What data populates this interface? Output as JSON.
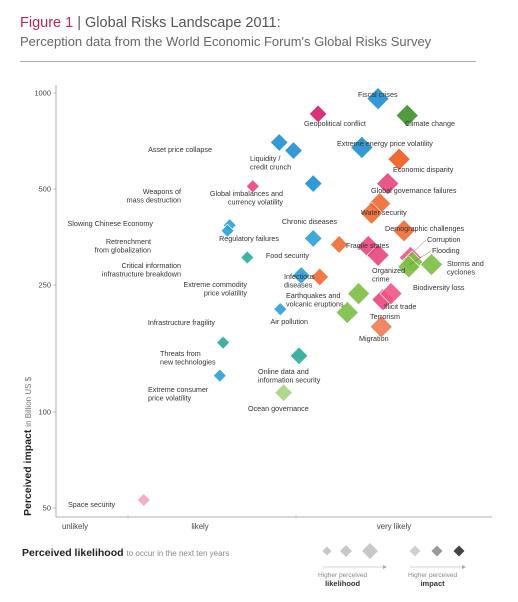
{
  "header": {
    "figure": "Figure 1",
    "title": "Global Risks Landscape 2011:",
    "subtitle": "Perception data from the World Economic Forum's Global Risks Survey"
  },
  "axes": {
    "y_bold": "Perceived impact",
    "y_small": "in Billion US $",
    "x_bold": "Perceived likelihood",
    "x_small": "to occur in the next ten years"
  },
  "legend": {
    "likelihood_top": "Higher perceived",
    "likelihood_bottom": "likelihood",
    "impact_top": "Higher perceived",
    "impact_bottom": "impact"
  },
  "colors": {
    "economic": "#1e8fd0",
    "geopolitical": "#d81b6a",
    "societal": "#ee6a33",
    "environmental": "#55a532",
    "technological": "#2aa99b"
  },
  "chart_data": {
    "type": "scatter",
    "x_scale": "categorical-continuous",
    "y_scale": "log",
    "x_ticks": [
      "unlikely",
      "likely",
      "very likely"
    ],
    "y_ticks": [
      50,
      100,
      250,
      500,
      1000
    ],
    "ylim": [
      50,
      1000
    ],
    "grid": false,
    "points": [
      {
        "label": "Fiscal crises",
        "x": 4.42,
        "y": 960,
        "color": "#1e8fd0",
        "size": 3
      },
      {
        "label": "Climate change",
        "x": 4.6,
        "y": 850,
        "color": "#3f8f2a",
        "size": 3
      },
      {
        "label": "Geopolitical conflict",
        "x": 4.05,
        "y": 860,
        "color": "#d81b6a",
        "size": 2
      },
      {
        "label": "Extreme energy price volatility",
        "x": 4.32,
        "y": 675,
        "color": "#1e8fd0",
        "size": 3
      },
      {
        "label": "Economic disparity",
        "x": 4.55,
        "y": 620,
        "color": "#ee5a1e",
        "size": 3
      },
      {
        "label": "Asset price collapse",
        "x": 3.72,
        "y": 700,
        "color": "#1e8fd0",
        "size": 2
      },
      {
        "label": "Liquidity / credit crunch",
        "x": 3.85,
        "y": 660,
        "color": "#1e8fd0",
        "size": 2
      },
      {
        "label": "Global governance failures",
        "x": 4.48,
        "y": 520,
        "color": "#e8457d",
        "size": 3
      },
      {
        "label": "Global imbalances and currency volatility",
        "x": 4.02,
        "y": 520,
        "color": "#1e8fd0",
        "size": 2
      },
      {
        "label": "Weapons of mass destruction",
        "x": 3.48,
        "y": 510,
        "color": "#e8457d",
        "size": 1
      },
      {
        "label": "Water security",
        "x": 4.43,
        "y": 450,
        "color": "#ee6a33",
        "size": 3
      },
      {
        "label": "Chronic diseases",
        "x": 4.38,
        "y": 420,
        "color": "#ee6a33",
        "size": 3
      },
      {
        "label": "Demographic challenges",
        "x": 4.58,
        "y": 370,
        "color": "#ee6a33",
        "size": 3
      },
      {
        "label": "Slowing Chinese Economy",
        "x": 3.27,
        "y": 385,
        "color": "#2aa0d8",
        "size": 1
      },
      {
        "label": "Retrenchment from globalization",
        "x": 3.25,
        "y": 370,
        "color": "#2aa0d8",
        "size": 1
      },
      {
        "label": "Regulatory failures",
        "x": 4.02,
        "y": 350,
        "color": "#2aa0d8",
        "size": 2
      },
      {
        "label": "Food security",
        "x": 4.18,
        "y": 335,
        "color": "#ee6a33",
        "size": 2
      },
      {
        "label": "Fragile states",
        "x": 4.36,
        "y": 330,
        "color": "#e8457d",
        "size": 3
      },
      {
        "label": "Organized crime",
        "x": 4.42,
        "y": 310,
        "color": "#e8457d",
        "size": 3
      },
      {
        "label": "Corruption",
        "x": 4.62,
        "y": 305,
        "color": "#f05584",
        "size": 3
      },
      {
        "label": "Flooding",
        "x": 4.63,
        "y": 295,
        "color": "#7cbf44",
        "size": 3
      },
      {
        "label": "Biodiversity loss",
        "x": 4.61,
        "y": 285,
        "color": "#7cbf44",
        "size": 3
      },
      {
        "label": "Storms and cyclones",
        "x": 4.75,
        "y": 290,
        "color": "#7cbf44",
        "size": 3
      },
      {
        "label": "Critical information infrastructure breakdown",
        "x": 3.43,
        "y": 305,
        "color": "#2aa99b",
        "size": 1
      },
      {
        "label": "Extreme commodity price volatility",
        "x": 3.92,
        "y": 268,
        "color": "#2aa0d8",
        "size": 2
      },
      {
        "label": "Infectious diseases",
        "x": 4.06,
        "y": 265,
        "color": "#ee6a33",
        "size": 2
      },
      {
        "label": "Earthquakes and volcanic eruptions",
        "x": 4.3,
        "y": 235,
        "color": "#7cbf44",
        "size": 3
      },
      {
        "label": "Terrorism",
        "x": 4.45,
        "y": 225,
        "color": "#e8457d",
        "size": 3
      },
      {
        "label": "Illicit trade",
        "x": 4.5,
        "y": 235,
        "color": "#f05584",
        "size": 3
      },
      {
        "label": "Infrastructure fragility",
        "x": 3.73,
        "y": 210,
        "color": "#2aa0d8",
        "size": 1
      },
      {
        "label": "Air pollution",
        "x": 4.23,
        "y": 205,
        "color": "#7cbf44",
        "size": 3
      },
      {
        "label": "Migration",
        "x": 4.44,
        "y": 185,
        "color": "#f07a54",
        "size": 3
      },
      {
        "label": "Threats from new technologies",
        "x": 3.21,
        "y": 165,
        "color": "#2aa99b",
        "size": 1
      },
      {
        "label": "Online data and information security",
        "x": 3.9,
        "y": 150,
        "color": "#2aa99b",
        "size": 2
      },
      {
        "label": "Extreme consumer price volatility",
        "x": 3.18,
        "y": 130,
        "color": "#2aa0d8",
        "size": 1
      },
      {
        "label": "Ocean governance",
        "x": 3.76,
        "y": 115,
        "color": "#a6d47d",
        "size": 2
      },
      {
        "label": "Space security",
        "x": 2.55,
        "y": 53,
        "color": "#f4a6bd",
        "size": 1
      }
    ]
  }
}
